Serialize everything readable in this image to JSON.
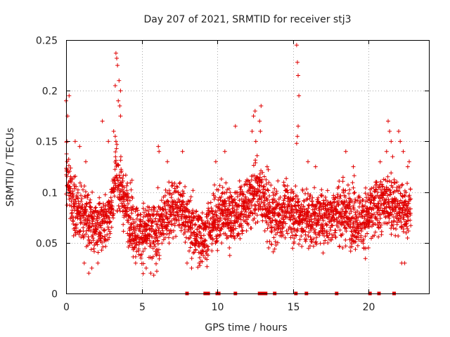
{
  "chart_data": {
    "type": "scatter",
    "title": "Day 207 of 2021, SRMTID for receiver stj3",
    "xlabel": "GPS time / hours",
    "ylabel": "SRMTID / TECUs",
    "xlim": [
      0,
      24
    ],
    "ylim": [
      0,
      0.25
    ],
    "x_ticks": [
      0,
      5,
      10,
      15,
      20
    ],
    "x_tick_labels": [
      "0",
      "5",
      "10",
      "15",
      "20"
    ],
    "y_ticks": [
      0,
      0.05,
      0.1,
      0.15,
      0.2,
      0.25
    ],
    "y_tick_labels": [
      "0",
      "0.05",
      "0.1",
      "0.15",
      "0.2",
      "0.25"
    ],
    "grid": true,
    "marker": "+",
    "color": "#e00000",
    "trend": [
      [
        0.0,
        0.115
      ],
      [
        0.5,
        0.085
      ],
      [
        1.0,
        0.08
      ],
      [
        1.5,
        0.075
      ],
      [
        2.0,
        0.065
      ],
      [
        2.5,
        0.07
      ],
      [
        3.0,
        0.085
      ],
      [
        3.3,
        0.12
      ],
      [
        3.6,
        0.1
      ],
      [
        4.0,
        0.085
      ],
      [
        4.5,
        0.065
      ],
      [
        5.0,
        0.06
      ],
      [
        5.5,
        0.06
      ],
      [
        6.0,
        0.06
      ],
      [
        6.5,
        0.075
      ],
      [
        7.0,
        0.085
      ],
      [
        7.5,
        0.085
      ],
      [
        8.0,
        0.075
      ],
      [
        8.5,
        0.06
      ],
      [
        9.0,
        0.055
      ],
      [
        9.5,
        0.065
      ],
      [
        10.0,
        0.075
      ],
      [
        10.5,
        0.08
      ],
      [
        11.0,
        0.075
      ],
      [
        11.5,
        0.08
      ],
      [
        12.0,
        0.09
      ],
      [
        12.5,
        0.1
      ],
      [
        13.0,
        0.095
      ],
      [
        13.5,
        0.075
      ],
      [
        14.0,
        0.075
      ],
      [
        14.5,
        0.085
      ],
      [
        15.0,
        0.08
      ],
      [
        15.5,
        0.075
      ],
      [
        16.0,
        0.075
      ],
      [
        16.5,
        0.075
      ],
      [
        17.0,
        0.075
      ],
      [
        17.5,
        0.078
      ],
      [
        18.0,
        0.08
      ],
      [
        18.5,
        0.078
      ],
      [
        19.0,
        0.075
      ],
      [
        19.5,
        0.075
      ],
      [
        20.0,
        0.075
      ],
      [
        20.5,
        0.085
      ],
      [
        21.0,
        0.09
      ],
      [
        21.5,
        0.09
      ],
      [
        22.0,
        0.085
      ],
      [
        22.5,
        0.08
      ],
      [
        22.8,
        0.085
      ]
    ],
    "spread": 0.028,
    "sampling_interval_hours": 0.0125,
    "peaks": [
      {
        "x": 0.0,
        "y": 0.19
      },
      {
        "x": 0.2,
        "y": 0.195
      },
      {
        "x": 0.1,
        "y": 0.175
      },
      {
        "x": 0.05,
        "y": 0.15
      },
      {
        "x": 0.6,
        "y": 0.15
      },
      {
        "x": 0.9,
        "y": 0.145
      },
      {
        "x": 1.3,
        "y": 0.13
      },
      {
        "x": 2.4,
        "y": 0.17
      },
      {
        "x": 2.8,
        "y": 0.15
      },
      {
        "x": 3.3,
        "y": 0.237
      },
      {
        "x": 3.35,
        "y": 0.232
      },
      {
        "x": 3.4,
        "y": 0.225
      },
      {
        "x": 3.25,
        "y": 0.205
      },
      {
        "x": 3.5,
        "y": 0.21
      },
      {
        "x": 3.6,
        "y": 0.2
      },
      {
        "x": 3.45,
        "y": 0.19
      },
      {
        "x": 3.55,
        "y": 0.185
      },
      {
        "x": 3.6,
        "y": 0.175
      },
      {
        "x": 3.15,
        "y": 0.16
      },
      {
        "x": 3.25,
        "y": 0.155
      },
      {
        "x": 3.3,
        "y": 0.15
      },
      {
        "x": 6.1,
        "y": 0.145
      },
      {
        "x": 6.15,
        "y": 0.14
      },
      {
        "x": 6.7,
        "y": 0.13
      },
      {
        "x": 7.7,
        "y": 0.14
      },
      {
        "x": 9.9,
        "y": 0.13
      },
      {
        "x": 10.5,
        "y": 0.14
      },
      {
        "x": 11.2,
        "y": 0.165
      },
      {
        "x": 12.4,
        "y": 0.175
      },
      {
        "x": 12.5,
        "y": 0.18
      },
      {
        "x": 12.3,
        "y": 0.16
      },
      {
        "x": 12.55,
        "y": 0.15
      },
      {
        "x": 12.9,
        "y": 0.185
      },
      {
        "x": 12.8,
        "y": 0.17
      },
      {
        "x": 12.85,
        "y": 0.16
      },
      {
        "x": 13.3,
        "y": 0.125
      },
      {
        "x": 15.25,
        "y": 0.245
      },
      {
        "x": 15.3,
        "y": 0.228
      },
      {
        "x": 15.35,
        "y": 0.215
      },
      {
        "x": 15.4,
        "y": 0.195
      },
      {
        "x": 15.35,
        "y": 0.165
      },
      {
        "x": 15.3,
        "y": 0.155
      },
      {
        "x": 15.25,
        "y": 0.148
      },
      {
        "x": 16.0,
        "y": 0.13
      },
      {
        "x": 16.5,
        "y": 0.125
      },
      {
        "x": 18.5,
        "y": 0.14
      },
      {
        "x": 19.0,
        "y": 0.125
      },
      {
        "x": 21.3,
        "y": 0.17
      },
      {
        "x": 21.4,
        "y": 0.16
      },
      {
        "x": 21.5,
        "y": 0.15
      },
      {
        "x": 21.2,
        "y": 0.14
      },
      {
        "x": 21.6,
        "y": 0.135
      },
      {
        "x": 22.0,
        "y": 0.16
      },
      {
        "x": 22.1,
        "y": 0.15
      },
      {
        "x": 22.3,
        "y": 0.14
      },
      {
        "x": 22.6,
        "y": 0.125
      },
      {
        "x": 22.7,
        "y": 0.13
      }
    ],
    "troughs": [
      {
        "x": 1.2,
        "y": 0.03
      },
      {
        "x": 1.5,
        "y": 0.02
      },
      {
        "x": 1.7,
        "y": 0.025
      },
      {
        "x": 2.1,
        "y": 0.03
      },
      {
        "x": 4.6,
        "y": 0.03
      },
      {
        "x": 5.3,
        "y": 0.025
      },
      {
        "x": 5.6,
        "y": 0.02
      },
      {
        "x": 5.8,
        "y": 0.018
      },
      {
        "x": 6.0,
        "y": 0.022
      },
      {
        "x": 8.0,
        "y": 0.03
      },
      {
        "x": 8.3,
        "y": 0.025
      },
      {
        "x": 8.8,
        "y": 0.03
      },
      {
        "x": 9.2,
        "y": 0.035
      },
      {
        "x": 10.8,
        "y": 0.045
      },
      {
        "x": 13.4,
        "y": 0.045
      },
      {
        "x": 14.0,
        "y": 0.05
      },
      {
        "x": 16.5,
        "y": 0.05
      },
      {
        "x": 17.0,
        "y": 0.04
      },
      {
        "x": 18.3,
        "y": 0.045
      },
      {
        "x": 19.7,
        "y": 0.045
      },
      {
        "x": 20.0,
        "y": 0.045
      },
      {
        "x": 22.2,
        "y": 0.03
      },
      {
        "x": 22.4,
        "y": 0.03
      }
    ],
    "zero_markers_x": [
      8.0,
      9.2,
      9.4,
      10.0,
      10.1,
      11.2,
      12.8,
      13.0,
      13.2,
      13.8,
      15.2,
      15.9,
      17.9,
      20.1,
      20.7,
      21.7
    ]
  }
}
